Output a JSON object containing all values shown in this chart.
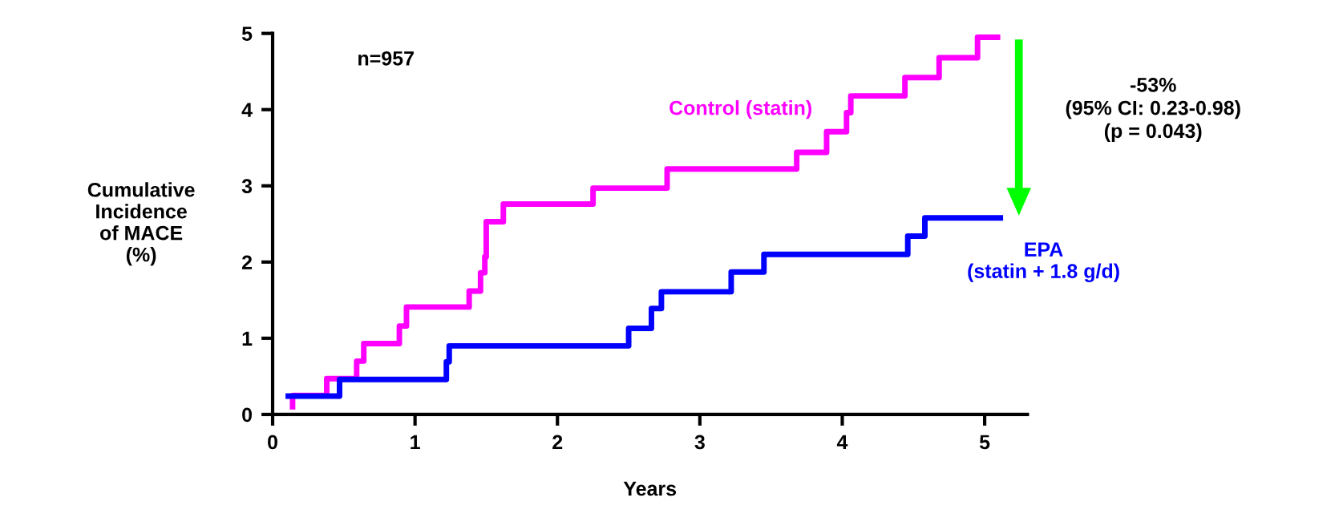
{
  "chart_data": {
    "type": "step",
    "xlabel": "Years",
    "ylabel": "Cumulative\nIncidence\nof MACE\n(%)",
    "xlim": [
      0,
      5.3
    ],
    "ylim": [
      0,
      5
    ],
    "xticks": [
      0,
      1,
      2,
      3,
      4,
      5
    ],
    "yticks": [
      0,
      1,
      2,
      3,
      4,
      5
    ],
    "grid": false,
    "legend": false,
    "series": [
      {
        "name": "Control (statin)",
        "color": "#ff00ff",
        "x": [
          0.14,
          0.14,
          0.38,
          0.59,
          0.64,
          0.89,
          0.94,
          1.38,
          1.46,
          1.49,
          1.5,
          1.62,
          2.25,
          2.77,
          3.68,
          3.89,
          4.03,
          4.06,
          4.44,
          4.68,
          4.95,
          5.09
        ],
        "values": [
          0.1,
          0.25,
          0.47,
          0.7,
          0.93,
          1.16,
          1.41,
          1.62,
          1.86,
          2.07,
          2.53,
          2.76,
          2.97,
          3.22,
          3.44,
          3.71,
          3.96,
          4.18,
          4.42,
          4.68,
          4.95,
          4.95
        ]
      },
      {
        "name": "EPA\n(statin + 1.8 g/d)",
        "color": "#0000ff",
        "x": [
          0.11,
          0.47,
          1.22,
          1.24,
          2.5,
          2.66,
          2.73,
          3.22,
          3.45,
          4.46,
          4.58,
          5.11
        ],
        "values": [
          0.24,
          0.46,
          0.69,
          0.9,
          1.13,
          1.39,
          1.61,
          1.87,
          2.1,
          2.34,
          2.58,
          2.58
        ]
      }
    ],
    "annotations": [
      "n=957",
      "-53%\n(95% CI: 0.23-0.98)\n(p = 0.043)"
    ]
  }
}
